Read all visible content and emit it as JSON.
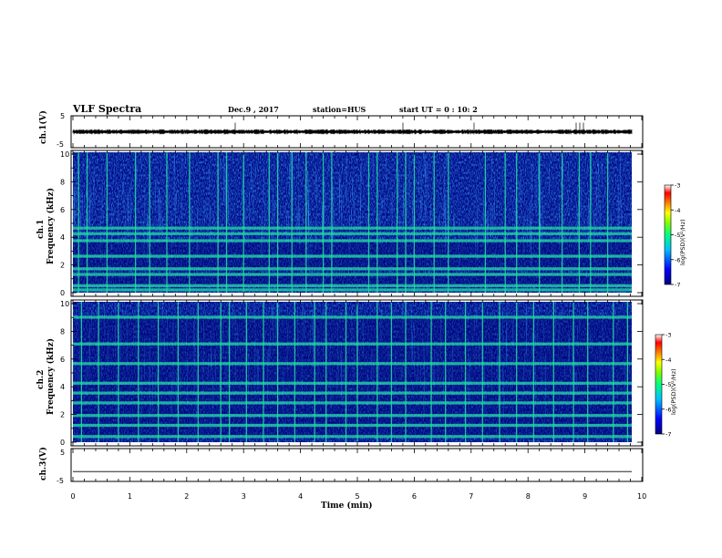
{
  "header": {
    "title": "VLF Spectra",
    "date": "Dec.9 , 2017",
    "station": "station=HUS",
    "start_time": "start UT =  0 : 10: 2"
  },
  "colors": {
    "spectrogram_low": "#00008b",
    "spectrogram_mid": "#1e6bff",
    "spectrogram_line": "#22e0a0",
    "colormap": [
      "#000080",
      "#0000ff",
      "#00c0ff",
      "#00ff80",
      "#80ff00",
      "#ffff00",
      "#ff8000",
      "#ff0000",
      "#ffffff"
    ]
  },
  "chart_data": [
    {
      "type": "line",
      "name_label": "ch.1(V)",
      "ylabel": "ch.1(V)",
      "yticks": [
        "5",
        "-5"
      ],
      "ylim": [
        -5,
        5
      ],
      "trace_level": 0,
      "xlim": [
        0,
        10
      ]
    },
    {
      "type": "heatmap",
      "ylabel_top": "ch.1",
      "ylabel": "Frequency (kHz)",
      "yticks": [
        "0",
        "2",
        "4",
        "6",
        "8",
        "10"
      ],
      "ylim": [
        0,
        10
      ],
      "xlim": [
        0,
        10
      ],
      "colorbar": {
        "label": "log(PSD)(V²/Hz)",
        "ticks": [
          "-3",
          "-4",
          "-5",
          "-6",
          "-7"
        ],
        "range": [
          -7,
          -3
        ]
      },
      "bright_bands_khz": [
        0.2,
        0.5,
        1.3,
        1.7,
        2.6,
        3.7,
        4.2,
        4.6
      ],
      "impulse_times_min": [
        0.1,
        0.25,
        0.6,
        1.1,
        1.35,
        1.65,
        2.05,
        2.55,
        2.7,
        3.0,
        3.45,
        3.6,
        3.85,
        4.1,
        4.4,
        4.55,
        5.2,
        5.35,
        5.7,
        5.85,
        6.0,
        6.35,
        6.6,
        7.25,
        7.6,
        7.8,
        8.2,
        8.6,
        8.9,
        9.1,
        9.4
      ]
    },
    {
      "type": "heatmap",
      "ylabel_top": "ch.2",
      "ylabel": "Frequency (kHz)",
      "yticks": [
        "0",
        "2",
        "4",
        "6",
        "8",
        "10"
      ],
      "ylim": [
        0,
        10
      ],
      "xlim": [
        0,
        10
      ],
      "colorbar": {
        "label": "log(PSD)(V²/Hz)",
        "ticks": [
          "-3",
          "-4",
          "-5",
          "-6",
          "-7"
        ],
        "range": [
          -7,
          -3
        ]
      },
      "bright_bands_khz": [
        0.4,
        1.2,
        1.9,
        2.8,
        3.5,
        4.2,
        5.6,
        7.0,
        8.9
      ],
      "impulse_times_min": [
        0.15,
        0.45,
        0.8,
        1.15,
        1.5,
        1.85,
        2.2,
        2.6,
        2.75,
        3.05,
        3.35,
        3.6,
        3.9,
        4.25,
        4.45,
        4.8,
        5.0,
        5.35,
        5.6,
        5.85,
        6.3,
        6.55,
        6.9,
        7.2,
        7.5,
        7.8,
        8.1,
        8.45,
        8.8,
        9.05,
        9.5,
        9.75
      ]
    },
    {
      "type": "line",
      "ylabel": "ch.3(V)",
      "yticks": [
        "5",
        "-5"
      ],
      "ylim": [
        -5,
        5
      ],
      "trace_level": -2,
      "xlim": [
        0,
        10
      ]
    }
  ],
  "xaxis": {
    "label": "Time (min)",
    "ticks": [
      "0",
      "1",
      "2",
      "3",
      "4",
      "5",
      "6",
      "7",
      "8",
      "9",
      "10"
    ]
  }
}
